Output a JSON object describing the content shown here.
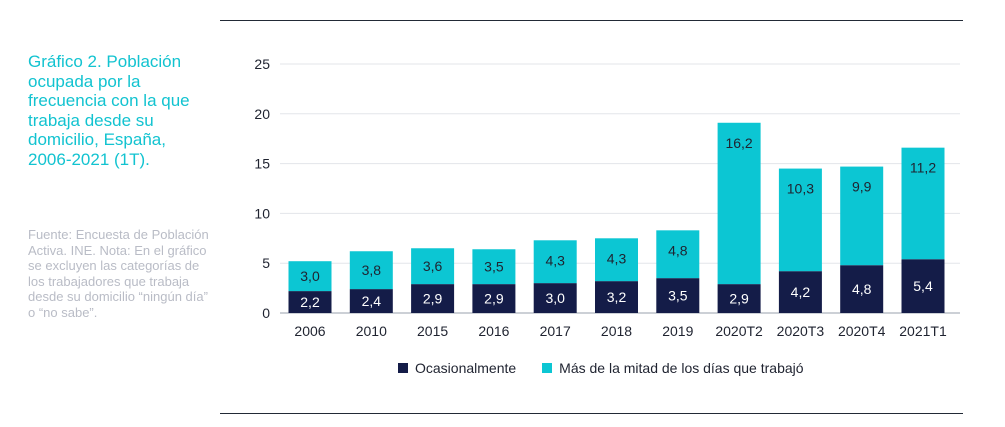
{
  "title": "Gráfico 2. Población ocupada por la frecuencia con la que trabaja desde su domicilio, España, 2006-2021 (1T).",
  "source": "Fuente: Encuesta de Población Activa. INE. Nota: En el gráfico se excluyen las categorías de los trabajadores que trabaja desde su domicilio “ningún día” o “no sabe”.",
  "colors": {
    "occasional": "#141c48",
    "more_than_half": "#0cc6d3"
  },
  "chart_data": {
    "type": "bar",
    "stacked": true,
    "categories": [
      "2006",
      "2010",
      "2015",
      "2016",
      "2017",
      "2018",
      "2019",
      "2020T2",
      "2020T3",
      "2020T4",
      "2021T1"
    ],
    "series": [
      {
        "name": "Ocasionalmente",
        "values": [
          2.2,
          2.4,
          2.9,
          2.9,
          3.0,
          3.2,
          3.5,
          2.9,
          4.2,
          4.8,
          5.4
        ],
        "labels": [
          "2,2",
          "2,4",
          "2,9",
          "2,9",
          "3,0",
          "3,2",
          "3,5",
          "2,9",
          "4,2",
          "4,8",
          "5,4"
        ]
      },
      {
        "name": "Más de la mitad de los días que trabajó",
        "values": [
          3.0,
          3.8,
          3.6,
          3.5,
          4.3,
          4.3,
          4.8,
          16.2,
          10.3,
          9.9,
          11.2
        ],
        "labels": [
          "3,0",
          "3,8",
          "3,6",
          "3,5",
          "4,3",
          "4,3",
          "4,8",
          "16,2",
          "10,3",
          "9,9",
          "11,2"
        ]
      }
    ],
    "yticks": [
      "0",
      "5",
      "10",
      "15",
      "20",
      "25"
    ],
    "ylim": [
      0,
      25
    ],
    "grid": true,
    "legend_position": "bottom"
  }
}
